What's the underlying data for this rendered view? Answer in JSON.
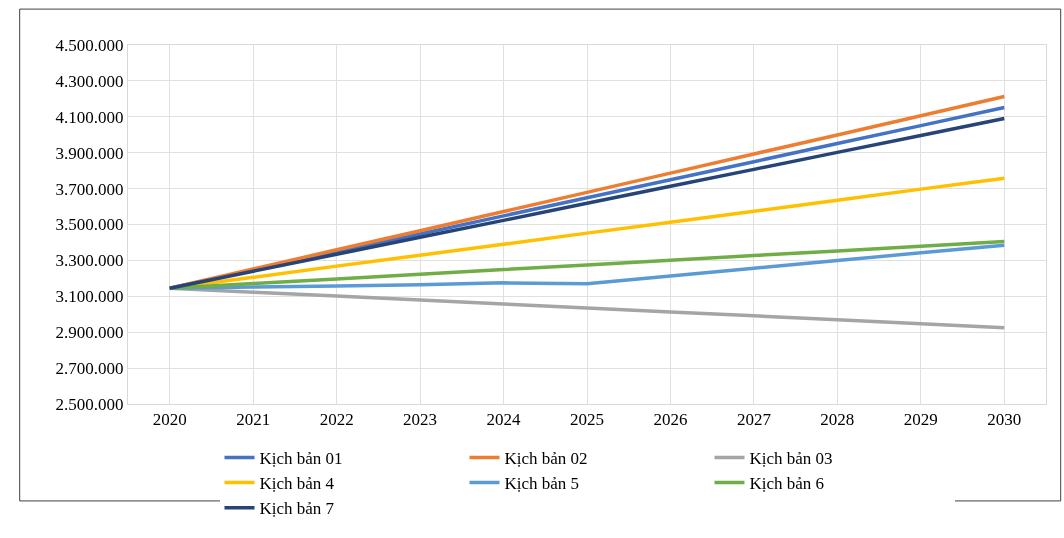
{
  "chart_data": {
    "type": "line",
    "categories": [
      "2020",
      "2021",
      "2022",
      "2023",
      "2024",
      "2025",
      "2026",
      "2027",
      "2028",
      "2029",
      "2030"
    ],
    "series": [
      {
        "name": "Kịch bản 01",
        "color": "#4472c4",
        "values": [
          3145000,
          3246000,
          3346000,
          3447000,
          3548000,
          3649000,
          3749000,
          3850000,
          3951000,
          4051000,
          4152000
        ]
      },
      {
        "name": "Kịch bản 02",
        "color": "#ed7d31",
        "values": [
          3145000,
          3252000,
          3359000,
          3465000,
          3572000,
          3679000,
          3786000,
          3893000,
          3999000,
          4106000,
          4213000
        ]
      },
      {
        "name": "Kịch bản 03",
        "color": "#a5a5a5",
        "values": [
          3145000,
          3123000,
          3101000,
          3079000,
          3057000,
          3035000,
          3013000,
          2991000,
          2969000,
          2947000,
          2925000
        ]
      },
      {
        "name": "Kịch bản 4",
        "color": "#ffc000",
        "values": [
          3145000,
          3206000,
          3268000,
          3329000,
          3390000,
          3452000,
          3513000,
          3574000,
          3635000,
          3697000,
          3758000
        ]
      },
      {
        "name": "Kịch bản 5",
        "color": "#5b9bd5",
        "values": [
          3145000,
          3152000,
          3158000,
          3165000,
          3175000,
          3170000,
          3213000,
          3256000,
          3299000,
          3342000,
          3385000
        ]
      },
      {
        "name": "Kịch bản 6",
        "color": "#70ad47",
        "values": [
          3145000,
          3171000,
          3197000,
          3223000,
          3249000,
          3275000,
          3301000,
          3327000,
          3353000,
          3379000,
          3405000
        ]
      },
      {
        "name": "Kịch bản 7",
        "color": "#264478",
        "values": [
          3145000,
          3240000,
          3334000,
          3429000,
          3523000,
          3618000,
          3713000,
          3807000,
          3902000,
          3996000,
          4091000
        ]
      }
    ],
    "ylim": [
      2500000,
      4500000
    ],
    "yticks": [
      {
        "value": 2500000,
        "label": "2.500.000"
      },
      {
        "value": 2700000,
        "label": "2.700.000"
      },
      {
        "value": 2900000,
        "label": "2.900.000"
      },
      {
        "value": 3100000,
        "label": "3.100.000"
      },
      {
        "value": 3300000,
        "label": "3.300.000"
      },
      {
        "value": 3500000,
        "label": "3.500.000"
      },
      {
        "value": 3700000,
        "label": "3.700.000"
      },
      {
        "value": 3900000,
        "label": "3.900.000"
      },
      {
        "value": 4100000,
        "label": "4.100.000"
      },
      {
        "value": 4300000,
        "label": "4.300.000"
      },
      {
        "value": 4500000,
        "label": "4.500.000"
      }
    ],
    "grid": true,
    "legend": "bottom",
    "marker": "none",
    "line_style": "solid"
  }
}
